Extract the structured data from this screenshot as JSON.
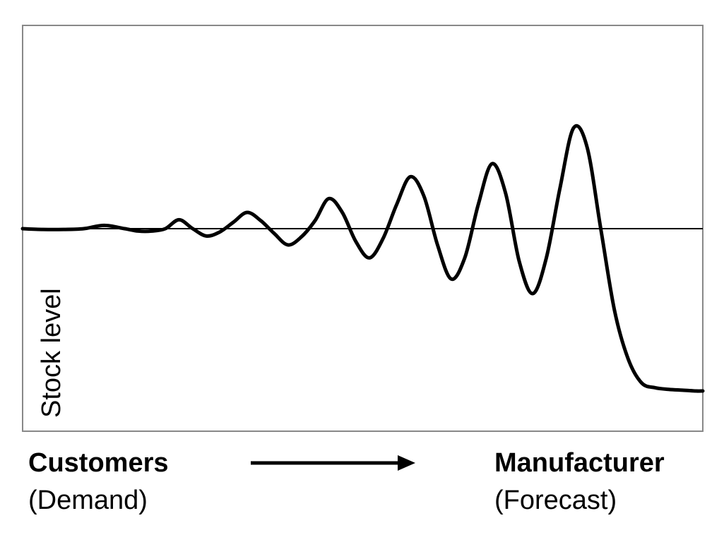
{
  "chart_data": {
    "type": "line",
    "title": "",
    "xlabel": "",
    "ylabel": "Stock level",
    "grid": false,
    "legend": "none",
    "baseline": 0,
    "x_range": [
      0,
      100
    ],
    "ylim": [
      -100,
      100
    ],
    "series": [
      {
        "color": "#000000",
        "x": [
          0,
          3,
          6,
          9,
          12,
          15,
          17,
          19,
          21,
          23,
          25,
          27,
          29,
          31,
          33,
          35,
          37,
          39,
          41,
          43,
          45,
          47,
          49,
          51,
          53,
          55,
          57,
          59,
          61,
          63,
          65,
          67,
          69,
          71,
          73,
          75,
          77,
          79,
          81,
          83,
          85,
          87,
          89,
          91,
          93,
          95,
          97,
          99,
          100
        ],
        "y": [
          0,
          -0.5,
          -0.5,
          0,
          2,
          0,
          -1.5,
          -1.5,
          0,
          5.5,
          0,
          -4.5,
          -2,
          4,
          10,
          5,
          -3,
          -10,
          -5,
          5,
          18.5,
          10,
          -8,
          -18,
          -6,
          15,
          32,
          20,
          -10,
          -31,
          -18,
          15,
          40,
          22,
          -20,
          -40,
          -18,
          25,
          62,
          50,
          0,
          -50,
          -80,
          -95,
          -98,
          -99,
          -99.5,
          -100,
          -100
        ]
      }
    ]
  },
  "annotations": {
    "left_title": "Customers",
    "left_subtitle": "(Demand)",
    "right_title": "Manufacturer",
    "right_subtitle": "(Forecast)"
  }
}
